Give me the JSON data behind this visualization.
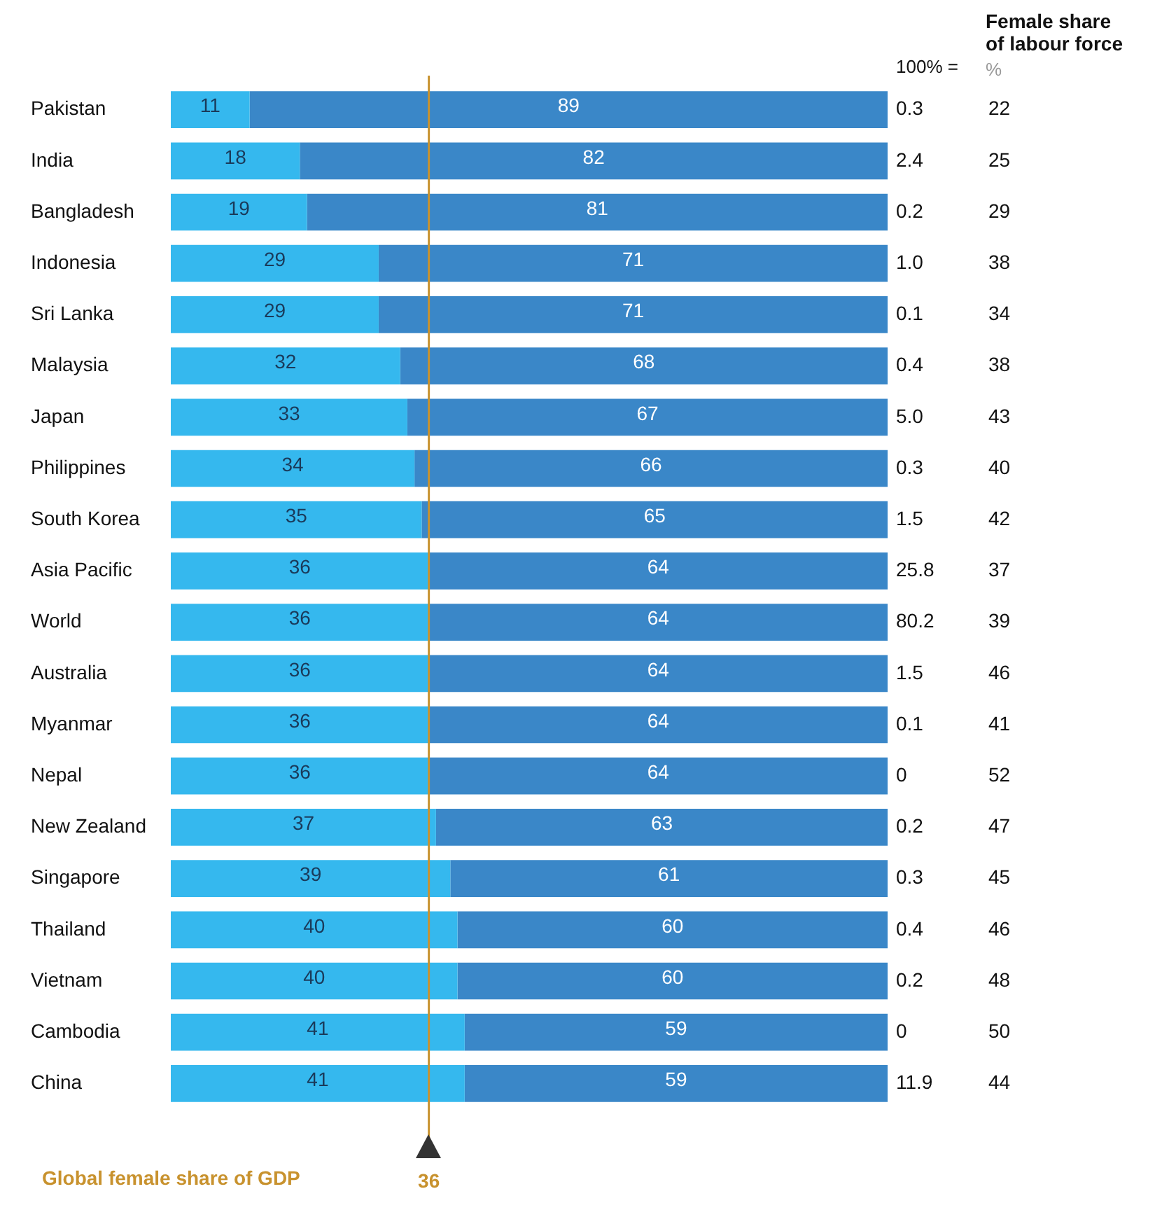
{
  "chart_data": {
    "type": "bar",
    "orientation": "horizontal",
    "stacked": true,
    "data_labels": true,
    "tick_labels": "y",
    "legend": false,
    "grid": false,
    "xlim": [
      0,
      100
    ],
    "categories": [
      "Pakistan",
      "India",
      "Bangladesh",
      "Indonesia",
      "Sri Lanka",
      "Malaysia",
      "Japan",
      "Philippines",
      "South Korea",
      "Asia Pacific",
      "World",
      "Australia",
      "Myanmar",
      "Nepal",
      "New Zealand",
      "Singapore",
      "Thailand",
      "Vietnam",
      "Cambodia",
      "China"
    ],
    "series": [
      {
        "color": "#35b8ee",
        "values": [
          11,
          18,
          19,
          29,
          29,
          32,
          33,
          34,
          35,
          36,
          36,
          36,
          36,
          36,
          37,
          39,
          40,
          40,
          41,
          41
        ]
      },
      {
        "color": "#3a87c8",
        "values": [
          89,
          82,
          81,
          71,
          71,
          68,
          67,
          66,
          65,
          64,
          64,
          64,
          64,
          64,
          63,
          61,
          60,
          60,
          59,
          59
        ]
      }
    ],
    "ref_lines": [
      {
        "axis": "x",
        "value": 36,
        "label": "Global female share of GDP",
        "color": "#c8922e"
      }
    ],
    "annotations": [
      "36",
      "100% =",
      "Female share of labour force",
      "%",
      "0.3",
      "22",
      "2.4",
      "25",
      "0.2",
      "29",
      "1.0",
      "38",
      "0.1",
      "34",
      "0.4",
      "38",
      "5.0",
      "43",
      "0.3",
      "40",
      "1.5",
      "42",
      "25.8",
      "37",
      "80.2",
      "39",
      "1.5",
      "46",
      "0.1",
      "41",
      "0",
      "52",
      "0.2",
      "47",
      "0.3",
      "45",
      "0.4",
      "46",
      "0.2",
      "48",
      "0",
      "50",
      "11.9",
      "44"
    ]
  }
}
